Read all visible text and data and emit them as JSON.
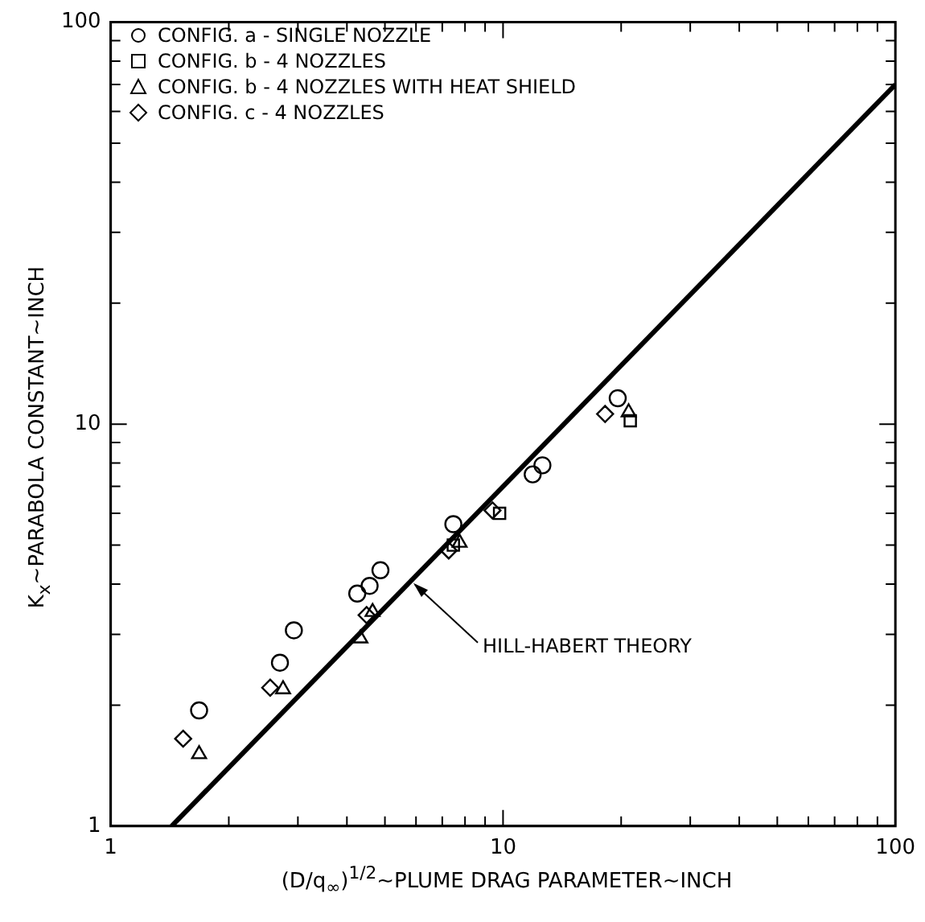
{
  "chart_data": {
    "type": "scatter",
    "xlabel": "(D/q$_{∞}$)$^{1/2}$~PLUME DRAG PARAMETER~INCH",
    "ylabel": "K$_{x}$~PARABOLA CONSTANT~INCH",
    "log": "xy",
    "grid": false,
    "legend": "top left",
    "xlim": [
      1,
      100
    ],
    "ylim": [
      1,
      100
    ],
    "xticks": [
      1,
      {
        "value": 2,
        "label": null
      },
      {
        "value": 3,
        "label": null
      },
      {
        "value": 4,
        "label": null
      },
      {
        "value": 5,
        "label": null
      },
      {
        "value": 6,
        "label": null
      },
      {
        "value": 7,
        "label": null
      },
      {
        "value": 8,
        "label": null
      },
      {
        "value": 9,
        "label": null
      },
      10,
      {
        "value": 20,
        "label": null
      },
      {
        "value": 30,
        "label": null
      },
      {
        "value": 40,
        "label": null
      },
      {
        "value": 50,
        "label": null
      },
      {
        "value": 60,
        "label": null
      },
      {
        "value": 70,
        "label": null
      },
      {
        "value": 80,
        "label": null
      },
      {
        "value": 90,
        "label": null
      },
      100
    ],
    "yticks": [
      1,
      {
        "value": 2,
        "label": null
      },
      {
        "value": 3,
        "label": null
      },
      {
        "value": 4,
        "label": null
      },
      {
        "value": 5,
        "label": null
      },
      {
        "value": 6,
        "label": null
      },
      {
        "value": 7,
        "label": null
      },
      {
        "value": 8,
        "label": null
      },
      {
        "value": 9,
        "label": null
      },
      10,
      {
        "value": 20,
        "label": null
      },
      {
        "value": 30,
        "label": null
      },
      {
        "value": 40,
        "label": null
      },
      {
        "value": 50,
        "label": null
      },
      {
        "value": 60,
        "label": null
      },
      {
        "value": 70,
        "label": null
      },
      {
        "value": 80,
        "label": null
      },
      {
        "value": 90,
        "label": null
      },
      100
    ],
    "series": [
      {
        "name": "CONFIG. a - SINGLE NOZZLE",
        "color": "#000000",
        "marker": "circle",
        "x": [
          1.68,
          2.7,
          2.93,
          4.25,
          4.57,
          4.87,
          7.47,
          11.9,
          12.6,
          19.6
        ],
        "values": [
          1.94,
          2.55,
          3.07,
          3.79,
          3.96,
          4.33,
          5.64,
          7.5,
          7.9,
          11.6
        ]
      },
      {
        "name": "CONFIG. b - 4 NOZZLES",
        "color": "#000000",
        "marker": "square",
        "x": [
          7.47,
          9.8,
          21.1
        ],
        "values": [
          5.0,
          6.0,
          10.2
        ]
      },
      {
        "name": "CONFIG. b - 4 NOZZLES WITH HEAT SHIELD",
        "color": "#000000",
        "marker": "triangle",
        "x": [
          1.68,
          2.75,
          4.33,
          4.65,
          7.75,
          20.9
        ],
        "values": [
          1.51,
          2.19,
          2.93,
          3.41,
          5.07,
          10.7
        ]
      },
      {
        "name": "CONFIG. c - 4 NOZZLES",
        "color": "#000000",
        "marker": "diamond",
        "x": [
          1.53,
          2.55,
          4.49,
          7.27,
          9.4,
          18.2
        ],
        "values": [
          1.65,
          2.21,
          3.35,
          4.85,
          6.1,
          10.6
        ]
      },
      {
        "type": "line",
        "color": "#000000",
        "marker": "none",
        "line_style": "solid",
        "x": [
          1.43,
          100
        ],
        "values": [
          1,
          70
        ]
      }
    ],
    "annotations": [
      {
        "text": "HILL-HABERT THEORY",
        "x": 5.8,
        "y": 4.1
      }
    ]
  }
}
